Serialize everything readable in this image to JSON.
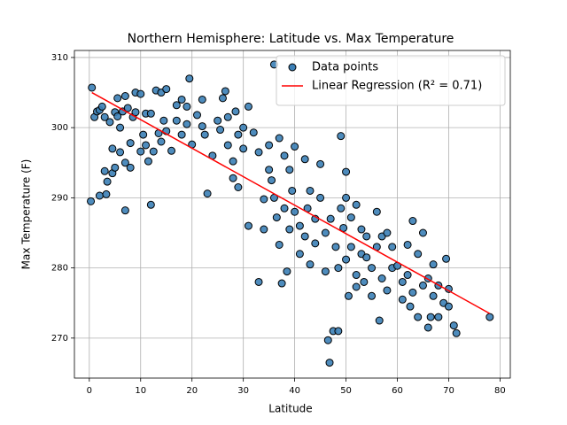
{
  "chart_data": {
    "type": "scatter",
    "title": "Northern Hemisphere: Latitude vs. Max Temperature",
    "x_label": "Latitude",
    "y_label": "Max Temperature (F)",
    "xlim": [
      -2.9,
      82.0
    ],
    "ylim": [
      264.3,
      311.0
    ],
    "xticks": [
      0,
      10,
      20,
      30,
      40,
      50,
      60,
      70,
      80
    ],
    "yticks": [
      270,
      280,
      290,
      300,
      310
    ],
    "grid": true,
    "legend": "upper right",
    "series": [
      {
        "name": "Data points",
        "type": "scatter",
        "color": "#3b7fb6",
        "x": [
          0.5,
          0.3,
          1,
          1.5,
          2,
          2,
          2.5,
          3,
          3,
          3.3,
          3.5,
          4,
          4.5,
          4.5,
          5,
          5,
          5.5,
          5.5,
          6,
          6,
          6.5,
          7,
          7,
          7,
          7.5,
          8,
          8,
          8.5,
          9,
          9,
          10,
          10,
          10.5,
          11,
          11,
          11.5,
          12,
          12,
          12.5,
          13,
          13.5,
          14,
          14,
          14.5,
          15,
          15,
          16,
          17,
          17,
          18,
          18,
          19,
          19,
          19.5,
          20,
          21,
          22,
          22,
          22.5,
          23,
          24,
          25,
          25.5,
          26,
          26.5,
          27,
          27,
          28,
          28,
          28.5,
          29,
          29,
          30,
          30,
          31,
          31,
          32,
          33,
          33,
          34,
          34,
          35,
          35,
          35.5,
          36,
          36,
          36.5,
          37,
          37,
          37.5,
          38,
          38,
          38.5,
          39,
          39,
          39.5,
          40,
          40,
          41,
          41,
          42,
          42,
          42.5,
          43,
          43,
          44,
          44,
          45,
          45,
          46,
          46,
          46.5,
          46.8,
          47,
          47.5,
          48,
          48.5,
          48.5,
          49,
          49,
          49.5,
          50,
          50,
          50,
          50.5,
          51,
          51,
          52,
          52,
          52,
          53,
          53,
          53.5,
          54,
          54,
          55,
          55,
          56,
          56,
          56.5,
          57,
          57,
          58,
          58,
          59,
          59,
          60,
          61,
          61,
          62,
          62,
          62.5,
          63,
          63,
          64,
          64,
          65,
          65,
          66,
          66,
          66.5,
          67,
          67,
          68,
          68,
          69,
          69.5,
          70,
          70,
          71,
          71.5,
          78
        ],
        "values": [
          305.7,
          289.5,
          301.5,
          302.3,
          302.5,
          290.3,
          303,
          301.5,
          293.8,
          290.5,
          292.3,
          300.8,
          297,
          293.5,
          294.3,
          302.2,
          304.2,
          301.6,
          300,
          296.5,
          302.3,
          304.5,
          295,
          288.2,
          302.8,
          297.8,
          294.3,
          301.5,
          305,
          302.2,
          304.8,
          296.6,
          299,
          302,
          297.5,
          295.2,
          289,
          302,
          296.6,
          305.3,
          299.2,
          305,
          298,
          301,
          305.5,
          299.5,
          296.7,
          303.2,
          301,
          304,
          299,
          303,
          300.5,
          307,
          297.6,
          301.8,
          304,
          300.2,
          299,
          290.6,
          296,
          301,
          299.7,
          304.2,
          305.2,
          301.5,
          297.5,
          292.8,
          295.2,
          302.3,
          291.5,
          299,
          300,
          297,
          303,
          286,
          299.3,
          278,
          296.5,
          289.8,
          285.5,
          297.5,
          294,
          292.5,
          309,
          290,
          287.2,
          298.5,
          283.3,
          277.8,
          296,
          288.5,
          279.5,
          294,
          285.5,
          291,
          297.3,
          288,
          286,
          282,
          295.5,
          284.5,
          288.5,
          291,
          280.5,
          287,
          283.5,
          294.8,
          290,
          285,
          279.5,
          269.7,
          266.5,
          287,
          271,
          283,
          280,
          271,
          298.8,
          288.5,
          285.7,
          293.7,
          290,
          281.2,
          276,
          287.2,
          283,
          289,
          279,
          277.3,
          285.5,
          282,
          278,
          284.5,
          281.5,
          280,
          276,
          288,
          283,
          272.5,
          284.5,
          278.5,
          285,
          276.8,
          283,
          280,
          280.3,
          278,
          275.5,
          283.3,
          279,
          274.5,
          286.7,
          276.5,
          282,
          273,
          285,
          277.5,
          278.5,
          271.5,
          273,
          280.5,
          276,
          277.5,
          273,
          275,
          281.3,
          277,
          274.5,
          271.8,
          270.7,
          273
        ]
      },
      {
        "name": "Linear Regression (R² = 0.71)",
        "type": "line",
        "color": "#ff0000",
        "x": [
          0.5,
          78
        ],
        "values": [
          305,
          273.5
        ]
      }
    ]
  }
}
